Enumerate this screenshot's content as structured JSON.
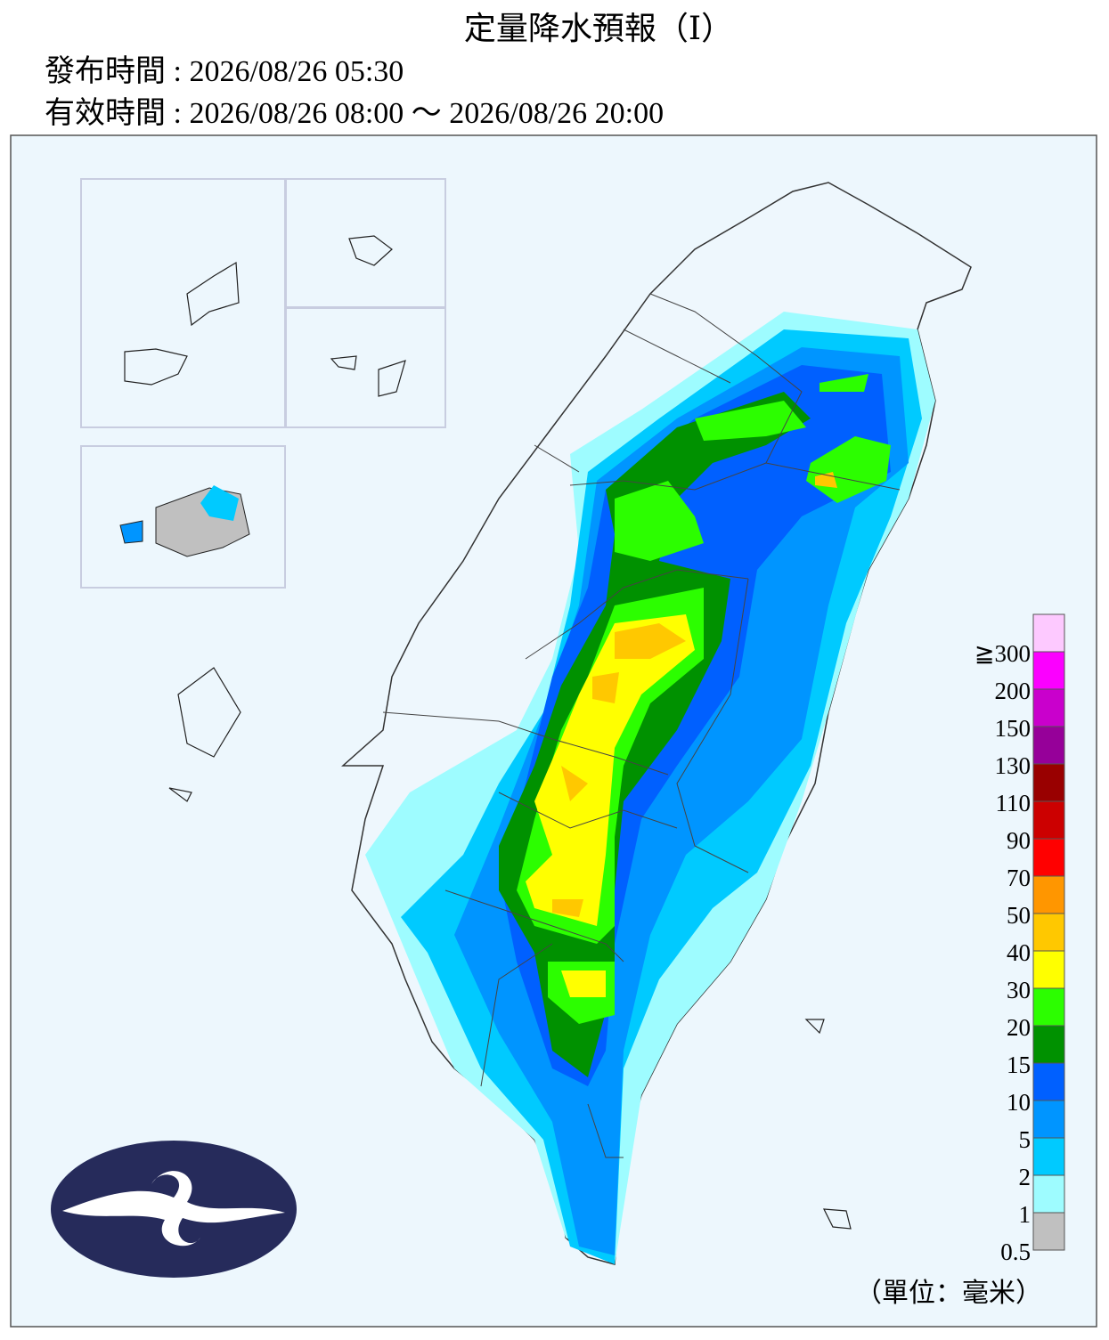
{
  "header": {
    "title": "定量降水預報（Ⅰ）",
    "issued": "發布時間 : 2026/08/26 05:30",
    "valid": "有效時間 : 2026/08/26 08:00 ～ 2026/08/26 20:00"
  },
  "legend": {
    "unit": "（單位：毫米）",
    "levels": [
      {
        "label": "0.5",
        "color": "#c0c0c0"
      },
      {
        "label": "1",
        "color": "#9efcff"
      },
      {
        "label": "2",
        "color": "#00caff"
      },
      {
        "label": "5",
        "color": "#0095ff"
      },
      {
        "label": "10",
        "color": "#0060ff"
      },
      {
        "label": "15",
        "color": "#009100"
      },
      {
        "label": "20",
        "color": "#2cfe00"
      },
      {
        "label": "30",
        "color": "#ffff00"
      },
      {
        "label": "40",
        "color": "#ffc800"
      },
      {
        "label": "50",
        "color": "#ff9600"
      },
      {
        "label": "70",
        "color": "#ff0000"
      },
      {
        "label": "90",
        "color": "#cc0000"
      },
      {
        "label": "110",
        "color": "#990000"
      },
      {
        "label": "130",
        "color": "#960099"
      },
      {
        "label": "150",
        "color": "#c900cc"
      },
      {
        "label": "200",
        "color": "#fb00ff"
      },
      {
        "label": "≧300",
        "color": "#fdc9ff"
      }
    ]
  }
}
